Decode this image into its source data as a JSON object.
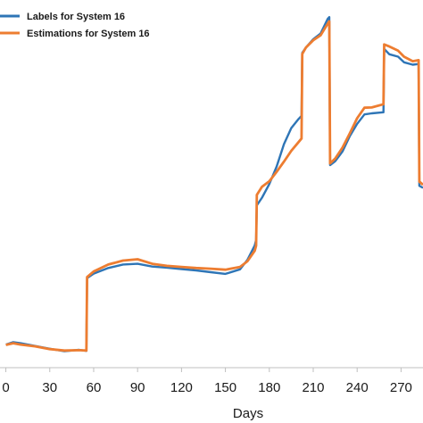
{
  "chart_data": {
    "type": "line",
    "xlabel": "Days",
    "ylabel": "",
    "xlim": [
      -4,
      285
    ],
    "ylim": [
      0,
      100
    ],
    "xticks": [
      0,
      30,
      60,
      90,
      120,
      150,
      180,
      210,
      240,
      270
    ],
    "grid": false,
    "legend_position": "top-left",
    "series": [
      {
        "name": "Labels for System 16",
        "color": "#2e75b6",
        "x": [
          0,
          5,
          10,
          20,
          30,
          40,
          50,
          55,
          55.5,
          60,
          70,
          80,
          90,
          100,
          110,
          120,
          130,
          140,
          150,
          160,
          165,
          170,
          171,
          171.5,
          175,
          180,
          185,
          190,
          195,
          200,
          202,
          202.5,
          205,
          210,
          215,
          220,
          221,
          221.5,
          225,
          230,
          235,
          240,
          245,
          250,
          258,
          258.5,
          262,
          268,
          272,
          278,
          282,
          282.5,
          285
        ],
        "y": [
          6.6,
          7.3,
          7.0,
          6.2,
          5.4,
          4.7,
          5.1,
          4.8,
          25.6,
          26.9,
          28.5,
          29.5,
          29.7,
          28.9,
          28.6,
          28.2,
          27.8,
          27.3,
          26.8,
          28.1,
          30.8,
          34.9,
          36.5,
          46.4,
          48.6,
          52.5,
          57.5,
          63.9,
          68.5,
          71.1,
          72.0,
          90.0,
          91.5,
          93.9,
          95.5,
          99.8,
          100.2,
          57.9,
          59.0,
          61.8,
          66.2,
          69.7,
          72.4,
          72.7,
          73.0,
          91.1,
          89.6,
          88.9,
          87.3,
          86.6,
          86.8,
          52.0,
          51.4
        ]
      },
      {
        "name": "Estimations for System 16",
        "color": "#ed7d31",
        "x": [
          0,
          5,
          10,
          20,
          30,
          40,
          50,
          55,
          55.5,
          60,
          70,
          80,
          90,
          100,
          110,
          120,
          130,
          140,
          150,
          160,
          165,
          170,
          171,
          171.5,
          175,
          180,
          185,
          190,
          195,
          200,
          202,
          202.5,
          205,
          210,
          215,
          220,
          221,
          221.5,
          225,
          230,
          235,
          240,
          245,
          250,
          258,
          258.5,
          262,
          268,
          272,
          278,
          282,
          282.5,
          285
        ],
        "y": [
          6.5,
          7.0,
          6.6,
          6.1,
          5.3,
          4.9,
          5.0,
          4.9,
          25.9,
          27.5,
          29.5,
          30.6,
          31.0,
          29.7,
          29.1,
          28.8,
          28.5,
          28.3,
          28.0,
          28.8,
          30.4,
          33.4,
          34.9,
          49.4,
          51.7,
          53.3,
          56.0,
          58.9,
          62.0,
          64.5,
          65.5,
          89.7,
          91.5,
          93.6,
          95.0,
          98.4,
          99.0,
          58.4,
          59.8,
          62.9,
          67.0,
          71.3,
          74.3,
          74.4,
          75.3,
          92.4,
          91.8,
          90.6,
          88.9,
          87.6,
          87.9,
          53.2,
          52.3
        ]
      }
    ]
  }
}
